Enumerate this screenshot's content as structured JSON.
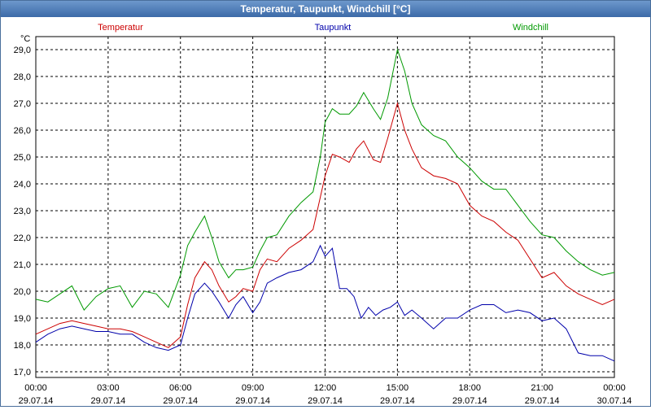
{
  "window": {
    "title": "Temperatur, Taupunkt, Windchill [°C]"
  },
  "chart_data": {
    "type": "line",
    "title": "Temperatur, Taupunkt, Windchill [°C]",
    "ylabel": "°C",
    "ylim": [
      17.0,
      29.5
    ],
    "xlim": [
      0,
      24
    ],
    "grid": true,
    "y_ticks": [
      "17,0",
      "18,0",
      "19,0",
      "20,0",
      "21,0",
      "22,0",
      "23,0",
      "24,0",
      "25,0",
      "26,0",
      "27,0",
      "28,0",
      "29,0"
    ],
    "y_tick_values": [
      17,
      18,
      19,
      20,
      21,
      22,
      23,
      24,
      25,
      26,
      27,
      28,
      29
    ],
    "x_ticks": [
      {
        "time": "00:00",
        "date": "29.07.14",
        "h": 0
      },
      {
        "time": "03:00",
        "date": "29.07.14",
        "h": 3
      },
      {
        "time": "06:00",
        "date": "29.07.14",
        "h": 6
      },
      {
        "time": "09:00",
        "date": "29.07.14",
        "h": 9
      },
      {
        "time": "12:00",
        "date": "29.07.14",
        "h": 12
      },
      {
        "time": "15:00",
        "date": "29.07.14",
        "h": 15
      },
      {
        "time": "18:00",
        "date": "29.07.14",
        "h": 18
      },
      {
        "time": "21:00",
        "date": "29.07.14",
        "h": 21
      },
      {
        "time": "00:00",
        "date": "30.07.14",
        "h": 24
      }
    ],
    "series": [
      {
        "name": "Temperatur",
        "color": "#cc0000",
        "legend_pos": "left",
        "x": [
          0,
          0.5,
          1,
          1.5,
          2,
          2.5,
          3,
          3.5,
          4,
          4.5,
          5,
          5.5,
          6,
          6.3,
          6.6,
          7,
          7.3,
          7.6,
          8,
          8.3,
          8.6,
          9,
          9.3,
          9.6,
          10,
          10.5,
          11,
          11.5,
          11.8,
          12,
          12.3,
          12.6,
          13,
          13.3,
          13.6,
          14,
          14.3,
          14.6,
          15,
          15.3,
          15.6,
          16,
          16.5,
          17,
          17.5,
          18,
          18.5,
          19,
          19.5,
          20,
          20.5,
          21,
          21.5,
          22,
          22.5,
          23,
          23.5,
          24
        ],
        "values": [
          18.4,
          18.6,
          18.8,
          18.9,
          18.8,
          18.7,
          18.6,
          18.6,
          18.5,
          18.3,
          18.1,
          17.9,
          18.3,
          19.5,
          20.5,
          21.1,
          20.8,
          20.2,
          19.6,
          19.8,
          20.1,
          20.0,
          20.8,
          21.2,
          21.1,
          21.6,
          21.9,
          22.3,
          23.5,
          24.3,
          25.1,
          25.0,
          24.8,
          25.3,
          25.6,
          24.9,
          24.8,
          25.7,
          27.0,
          26.0,
          25.3,
          24.6,
          24.3,
          24.2,
          24.0,
          23.2,
          22.8,
          22.6,
          22.2,
          21.9,
          21.2,
          20.5,
          20.7,
          20.2,
          19.9,
          19.7,
          19.5,
          19.7
        ]
      },
      {
        "name": "Taupunkt",
        "color": "#0000aa",
        "legend_pos": "center",
        "x": [
          0,
          0.5,
          1,
          1.5,
          2,
          2.5,
          3,
          3.5,
          4,
          4.5,
          5,
          5.5,
          6,
          6.3,
          6.6,
          7,
          7.3,
          7.6,
          8,
          8.3,
          8.6,
          9,
          9.3,
          9.6,
          10,
          10.5,
          11,
          11.5,
          11.8,
          12,
          12.3,
          12.6,
          12.9,
          13.2,
          13.5,
          13.8,
          14.1,
          14.4,
          14.7,
          15,
          15.3,
          15.6,
          16,
          16.5,
          17,
          17.5,
          18,
          18.5,
          19,
          19.5,
          20,
          20.5,
          21,
          21.5,
          22,
          22.5,
          23,
          23.5,
          24
        ],
        "values": [
          18.1,
          18.4,
          18.6,
          18.7,
          18.6,
          18.5,
          18.5,
          18.4,
          18.4,
          18.1,
          17.9,
          17.8,
          18.0,
          19.0,
          19.9,
          20.3,
          20.0,
          19.6,
          19.0,
          19.5,
          19.8,
          19.2,
          19.6,
          20.3,
          20.5,
          20.7,
          20.8,
          21.1,
          21.7,
          21.3,
          21.6,
          20.1,
          20.1,
          19.8,
          19.0,
          19.4,
          19.1,
          19.3,
          19.4,
          19.6,
          19.1,
          19.3,
          19.0,
          18.6,
          19.0,
          19.0,
          19.3,
          19.5,
          19.5,
          19.2,
          19.3,
          19.2,
          18.9,
          19.0,
          18.6,
          17.7,
          17.6,
          17.6,
          17.4
        ]
      },
      {
        "name": "Windchill",
        "color": "#009900",
        "legend_pos": "right",
        "x": [
          0,
          0.5,
          1,
          1.5,
          2,
          2.5,
          3,
          3.5,
          4,
          4.5,
          5,
          5.5,
          6,
          6.3,
          6.6,
          7,
          7.3,
          7.6,
          8,
          8.3,
          8.6,
          9,
          9.3,
          9.6,
          10,
          10.5,
          11,
          11.5,
          11.8,
          12,
          12.3,
          12.6,
          13,
          13.3,
          13.6,
          14,
          14.3,
          14.6,
          15,
          15.3,
          15.6,
          16,
          16.5,
          17,
          17.5,
          18,
          18.5,
          19,
          19.5,
          20,
          20.5,
          21,
          21.5,
          22,
          22.5,
          23,
          23.5,
          24
        ],
        "values": [
          19.7,
          19.6,
          19.9,
          20.2,
          19.3,
          19.8,
          20.1,
          20.2,
          19.4,
          20.0,
          19.9,
          19.4,
          20.6,
          21.7,
          22.2,
          22.8,
          22.0,
          21.1,
          20.5,
          20.8,
          20.8,
          20.9,
          21.5,
          22.0,
          22.1,
          22.8,
          23.3,
          23.7,
          25.0,
          26.3,
          26.8,
          26.6,
          26.6,
          26.9,
          27.4,
          26.8,
          26.4,
          27.2,
          29.0,
          28.2,
          27.0,
          26.2,
          25.8,
          25.6,
          25.0,
          24.6,
          24.1,
          23.8,
          23.8,
          23.2,
          22.6,
          22.1,
          22.0,
          21.5,
          21.1,
          20.8,
          20.6,
          20.7
        ]
      }
    ]
  }
}
